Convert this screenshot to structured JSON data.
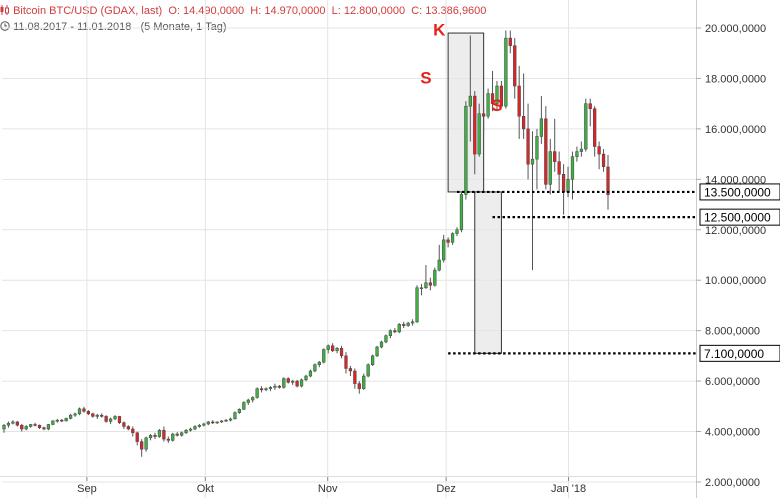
{
  "header": {
    "title": "Bitcoin BTC/USD (GDAX, last)",
    "open": "O: 14.490,0000",
    "high": "H: 14.970,0000",
    "low": "L: 12.800,0000",
    "close": "C: 13.386,9600",
    "range": "11.08.2017 - 11.01.2018",
    "period": "(5 Monate, 1 Tag)"
  },
  "colors": {
    "up": "#3cb043",
    "down": "#d9262a",
    "grid": "#e4e4e4",
    "annotation": "#e8201a",
    "box_fill": "#e6e6e6",
    "box_stroke": "#333333"
  },
  "icons": {
    "chart": "candlestick-chart-icon",
    "time": "clock-icon"
  },
  "chart_data": {
    "type": "candlestick",
    "title": "Bitcoin BTC/USD (GDAX, last)",
    "ylim": [
      1500,
      20500
    ],
    "grid": true,
    "y_ticks": [
      {
        "value": 2000,
        "label": "2.000,0000"
      },
      {
        "value": 4000,
        "label": "4.000,0000"
      },
      {
        "value": 6000,
        "label": "6.000,0000"
      },
      {
        "value": 8000,
        "label": "8.000,0000"
      },
      {
        "value": 10000,
        "label": "10.000,0000"
      },
      {
        "value": 12000,
        "label": "12.000,0000"
      },
      {
        "value": 14000,
        "label": "14.000,0000"
      },
      {
        "value": 16000,
        "label": "16.000,0000"
      },
      {
        "value": 18000,
        "label": "18.000,0000"
      },
      {
        "value": 20000,
        "label": "20.000,0000"
      }
    ],
    "x_ticks": [
      {
        "date": "2017-09-01",
        "label": "Sep"
      },
      {
        "date": "2017-10-01",
        "label": "Okt"
      },
      {
        "date": "2017-11-01",
        "label": "Nov"
      },
      {
        "date": "2017-12-01",
        "label": "Dez"
      },
      {
        "date": "2018-01-01",
        "label": "Jan '18"
      }
    ],
    "series": [
      {
        "type": "candlestick",
        "values": [
          [
            4100,
            4300,
            3950,
            4250
          ],
          [
            4250,
            4400,
            4150,
            4330
          ],
          [
            4330,
            4450,
            4280,
            4380
          ],
          [
            4380,
            4420,
            4200,
            4250
          ],
          [
            4250,
            4300,
            4000,
            4100
          ],
          [
            4100,
            4250,
            4050,
            4200
          ],
          [
            4200,
            4300,
            4150,
            4280
          ],
          [
            4280,
            4350,
            4200,
            4250
          ],
          [
            4250,
            4280,
            4100,
            4150
          ],
          [
            4150,
            4200,
            4050,
            4100
          ],
          [
            4100,
            4300,
            4050,
            4280
          ],
          [
            4280,
            4450,
            4250,
            4420
          ],
          [
            4420,
            4500,
            4350,
            4450
          ],
          [
            4450,
            4500,
            4380,
            4420
          ],
          [
            4420,
            4550,
            4400,
            4520
          ],
          [
            4520,
            4700,
            4480,
            4650
          ],
          [
            4650,
            4750,
            4580,
            4700
          ],
          [
            4700,
            4950,
            4650,
            4900
          ],
          [
            4900,
            4980,
            4750,
            4800
          ],
          [
            4800,
            4850,
            4650,
            4700
          ],
          [
            4700,
            4750,
            4550,
            4600
          ],
          [
            4600,
            4700,
            4500,
            4650
          ],
          [
            4650,
            4720,
            4550,
            4600
          ],
          [
            4600,
            4650,
            4350,
            4400
          ],
          [
            4400,
            4550,
            4300,
            4500
          ],
          [
            4500,
            4650,
            4450,
            4600
          ],
          [
            4600,
            4620,
            4300,
            4350
          ],
          [
            4350,
            4400,
            4100,
            4200
          ],
          [
            4200,
            4250,
            4050,
            4100
          ],
          [
            4100,
            4200,
            3800,
            3950
          ],
          [
            3950,
            4000,
            3450,
            3600
          ],
          [
            3600,
            3700,
            3000,
            3300
          ],
          [
            3300,
            3800,
            3200,
            3750
          ],
          [
            3750,
            3900,
            3650,
            3850
          ],
          [
            3850,
            3950,
            3700,
            3800
          ],
          [
            3800,
            4100,
            3750,
            4050
          ],
          [
            4050,
            4200,
            3600,
            3700
          ],
          [
            3700,
            3800,
            3550,
            3650
          ],
          [
            3650,
            3950,
            3600,
            3900
          ],
          [
            3900,
            3980,
            3800,
            3850
          ],
          [
            3850,
            4000,
            3800,
            3950
          ],
          [
            3950,
            4100,
            3900,
            4050
          ],
          [
            4050,
            4150,
            4000,
            4100
          ],
          [
            4100,
            4250,
            4050,
            4200
          ],
          [
            4200,
            4300,
            4150,
            4250
          ],
          [
            4250,
            4350,
            4200,
            4300
          ],
          [
            4300,
            4420,
            4250,
            4380
          ],
          [
            4380,
            4450,
            4300,
            4350
          ],
          [
            4350,
            4400,
            4300,
            4380
          ],
          [
            4380,
            4450,
            4340,
            4420
          ],
          [
            4420,
            4500,
            4380,
            4450
          ],
          [
            4450,
            4550,
            4400,
            4500
          ],
          [
            4500,
            4800,
            4480,
            4750
          ],
          [
            4750,
            4920,
            4700,
            4880
          ],
          [
            4880,
            5200,
            4850,
            5150
          ],
          [
            5150,
            5300,
            5050,
            5250
          ],
          [
            5250,
            5400,
            5150,
            5350
          ],
          [
            5350,
            5750,
            5300,
            5700
          ],
          [
            5700,
            5800,
            5550,
            5650
          ],
          [
            5650,
            5750,
            5600,
            5700
          ],
          [
            5700,
            5800,
            5600,
            5750
          ],
          [
            5750,
            5900,
            5650,
            5800
          ],
          [
            5800,
            5850,
            5700,
            5750
          ],
          [
            5750,
            6150,
            5700,
            6100
          ],
          [
            6100,
            6150,
            5900,
            5950
          ],
          [
            5950,
            6050,
            5850,
            6000
          ],
          [
            6000,
            6050,
            5750,
            5800
          ],
          [
            5800,
            6100,
            5750,
            6050
          ],
          [
            6050,
            6250,
            6000,
            6200
          ],
          [
            6200,
            6450,
            6150,
            6400
          ],
          [
            6400,
            6700,
            6350,
            6650
          ],
          [
            6650,
            6800,
            6550,
            6750
          ],
          [
            6750,
            7300,
            6700,
            7250
          ],
          [
            7250,
            7450,
            7100,
            7400
          ],
          [
            7400,
            7500,
            7150,
            7200
          ],
          [
            7200,
            7350,
            7100,
            7300
          ],
          [
            7300,
            7400,
            6900,
            7000
          ],
          [
            7000,
            7150,
            6300,
            6500
          ],
          [
            6500,
            6600,
            6200,
            6400
          ],
          [
            6400,
            6500,
            5700,
            5900
          ],
          [
            5900,
            6000,
            5500,
            5700
          ],
          [
            5700,
            6300,
            5650,
            6200
          ],
          [
            6200,
            6700,
            6150,
            6650
          ],
          [
            6650,
            7050,
            6600,
            7000
          ],
          [
            7000,
            7400,
            6950,
            7350
          ],
          [
            7350,
            7600,
            7300,
            7550
          ],
          [
            7550,
            7850,
            7500,
            7800
          ],
          [
            7800,
            8050,
            7700,
            8000
          ],
          [
            8000,
            8100,
            7900,
            7950
          ],
          [
            7950,
            8300,
            7900,
            8250
          ],
          [
            8250,
            8350,
            8100,
            8200
          ],
          [
            8200,
            8350,
            8150,
            8300
          ],
          [
            8300,
            8450,
            8200,
            8350
          ],
          [
            8350,
            9800,
            8300,
            9700
          ],
          [
            9700,
            9850,
            9400,
            9700
          ],
          [
            9700,
            10600,
            9650,
            9900
          ],
          [
            9900,
            10100,
            9600,
            9800
          ],
          [
            9800,
            10500,
            9750,
            10400
          ],
          [
            10400,
            11400,
            10350,
            10800
          ],
          [
            10800,
            11800,
            10700,
            11600
          ],
          [
            11600,
            11700,
            11300,
            11500
          ],
          [
            11500,
            11900,
            11400,
            11850
          ],
          [
            11850,
            12100,
            11750,
            12000
          ],
          [
            12000,
            13500,
            11900,
            13400
          ],
          [
            13400,
            17100,
            13200,
            16900
          ],
          [
            16900,
            19700,
            15500,
            17300
          ],
          [
            17300,
            17500,
            14200,
            15000
          ],
          [
            15000,
            17000,
            14900,
            16600
          ],
          [
            16600,
            16800,
            15800,
            16500
          ],
          [
            16500,
            17600,
            16400,
            17400
          ],
          [
            17400,
            18300,
            16700,
            17000
          ],
          [
            17000,
            17900,
            16700,
            17700
          ],
          [
            17700,
            17900,
            16900,
            16900
          ],
          [
            16900,
            19900,
            16800,
            19600
          ],
          [
            19600,
            19900,
            19000,
            19300
          ],
          [
            19300,
            19600,
            17200,
            17700
          ],
          [
            17700,
            18500,
            15600,
            16500
          ],
          [
            16500,
            18200,
            15600,
            16000
          ],
          [
            16000,
            17000,
            14000,
            14600
          ],
          [
            14600,
            15900,
            10400,
            14800
          ],
          [
            14800,
            16000,
            13600,
            15700
          ],
          [
            15700,
            17300,
            15400,
            16400
          ],
          [
            16400,
            16900,
            13600,
            13800
          ],
          [
            13800,
            15600,
            13400,
            15100
          ],
          [
            15100,
            16400,
            14300,
            14700
          ],
          [
            14700,
            15100,
            13500,
            14200
          ],
          [
            14200,
            14600,
            12600,
            13500
          ],
          [
            13500,
            14500,
            13300,
            14000
          ],
          [
            14000,
            15100,
            13200,
            14900
          ],
          [
            14900,
            15300,
            14700,
            15100
          ],
          [
            15100,
            15500,
            14900,
            15200
          ],
          [
            15200,
            17200,
            15100,
            17000
          ],
          [
            17000,
            17200,
            16100,
            16800
          ],
          [
            16800,
            16900,
            14900,
            15300
          ],
          [
            15300,
            15500,
            14400,
            15000
          ],
          [
            15000,
            15200,
            14300,
            14500
          ],
          [
            14490,
            14970,
            12800,
            13387
          ]
        ]
      }
    ],
    "annotations": {
      "labels": [
        "S",
        "K",
        "S"
      ],
      "levels": [
        {
          "value": 13500,
          "label": "13.500,0000"
        },
        {
          "value": 12500,
          "label": "12.500,0000"
        },
        {
          "value": 7100,
          "label": "7.100,0000"
        }
      ]
    }
  }
}
